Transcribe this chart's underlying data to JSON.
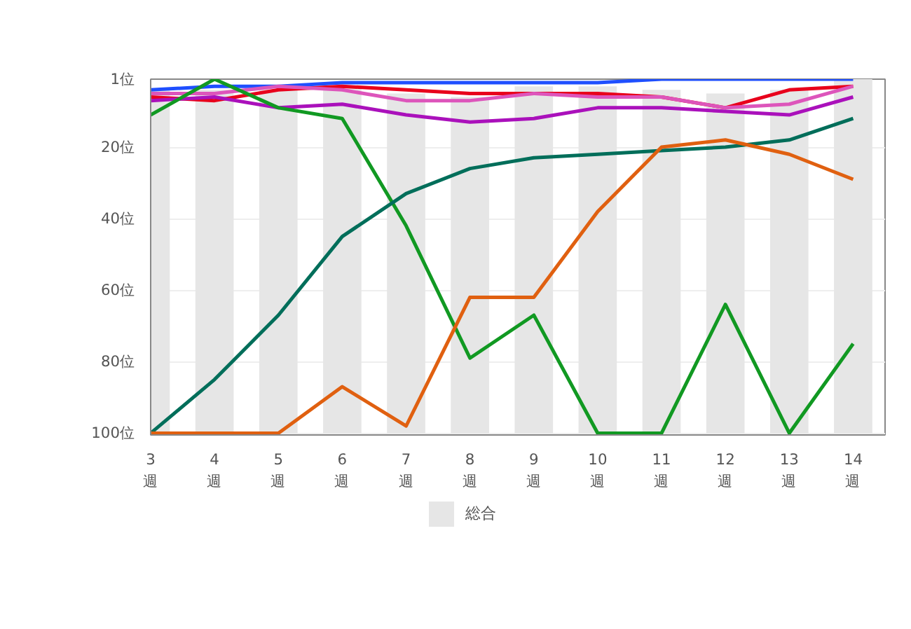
{
  "chart_data": {
    "type": "line",
    "categories": [
      "3週",
      "4週",
      "5週",
      "6週",
      "7週",
      "8週",
      "9週",
      "10週",
      "11週",
      "12週",
      "13週",
      "14週"
    ],
    "series": [
      {
        "name": "総合",
        "type": "bar",
        "color": "#e6e6e6",
        "base": [
          100,
          100,
          100,
          100,
          100,
          100,
          100,
          100,
          100,
          100,
          100,
          100
        ],
        "values": [
          -96,
          -96,
          -96,
          -97,
          -95,
          -94,
          -97,
          -97,
          -96,
          -95,
          -96,
          -99
        ]
      },
      {
        "color": "#1f4fff",
        "values": [
          4,
          3,
          3,
          2,
          2,
          2,
          2,
          2,
          1,
          1,
          1,
          1
        ]
      },
      {
        "color": "#e8001c",
        "values": [
          6,
          7,
          4,
          3,
          4,
          5,
          5,
          5,
          6,
          9,
          4,
          3
        ]
      },
      {
        "color": "#dd55bb",
        "values": [
          5,
          5,
          3,
          4,
          7,
          7,
          5,
          6,
          6,
          9,
          8,
          3
        ]
      },
      {
        "color": "#aa11bb",
        "values": [
          7,
          6,
          9,
          8,
          11,
          13,
          12,
          9,
          9,
          10,
          11,
          6
        ]
      },
      {
        "color": "#119922",
        "values": [
          11,
          1,
          9,
          12,
          42,
          79,
          67,
          100,
          100,
          64,
          100,
          75
        ]
      },
      {
        "color": "#006e5a",
        "values": [
          100,
          85,
          67,
          45,
          33,
          26,
          23,
          22,
          21,
          20,
          18,
          12
        ]
      },
      {
        "color": "#e06010",
        "values": [
          100,
          100,
          100,
          87,
          98,
          62,
          62,
          38,
          20,
          18,
          22,
          29
        ]
      }
    ],
    "ylim": [
      100.5,
      1
    ],
    "yticks": [
      {
        "value": 1,
        "label": "1位"
      },
      {
        "value": 20,
        "label": "20位"
      },
      {
        "value": 40,
        "label": "40位"
      },
      {
        "value": 60,
        "label": "60位"
      },
      {
        "value": 80,
        "label": "80位"
      },
      {
        "value": 100,
        "label": "100位"
      }
    ],
    "grid": "y",
    "legend": "bottom",
    "marker": "none",
    "line_style": "solid"
  }
}
